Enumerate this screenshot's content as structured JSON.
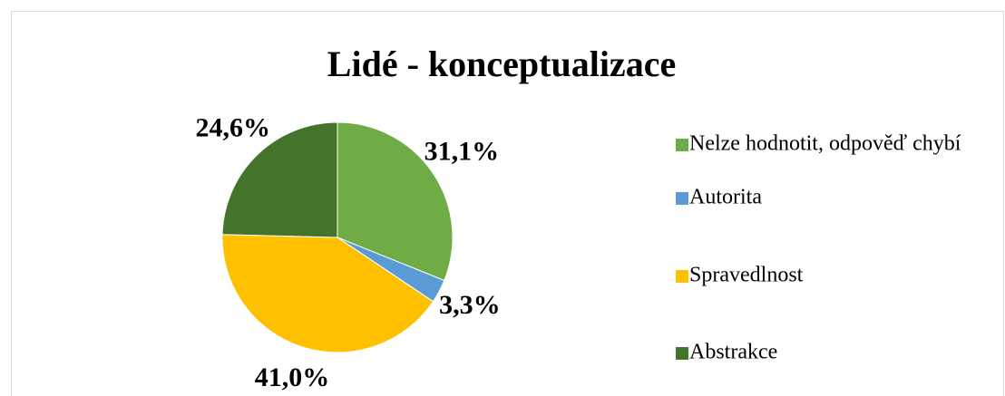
{
  "chart_data": {
    "type": "pie",
    "title": "Lidé - konceptualizace",
    "categories": [
      "Nelze hodnotit, odpověď chybí",
      "Autorita",
      "Spravedlnost",
      "Abstrakce"
    ],
    "values": [
      31.1,
      3.3,
      41.0,
      24.6
    ],
    "value_labels": [
      "31,1%",
      "3,3%",
      "41,0%",
      "24,6%"
    ],
    "colors": [
      "#6fac46",
      "#5b9bd5",
      "#ffc000",
      "#44732a"
    ],
    "legend": "right"
  }
}
